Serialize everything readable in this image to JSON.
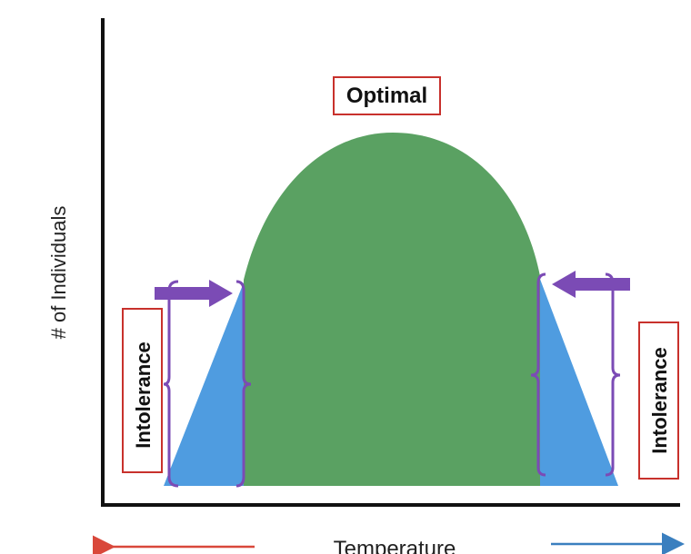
{
  "diagram": {
    "optimal_label": "Optimal",
    "intolerance_left_label": "Intolerance",
    "intolerance_right_label": "Intolerance",
    "x_axis_label": "Temperature",
    "y_axis_label": "# of Individuals"
  },
  "colors": {
    "optimal_zone": "#5aa162",
    "intolerance_zone": "#4f9ce0",
    "arrow_purple": "#7b4bb5",
    "label_border": "#c8312c",
    "axis_line": "#111111",
    "low_temp_arrow": "#d9483b",
    "high_temp_arrow": "#3a7fbf"
  }
}
